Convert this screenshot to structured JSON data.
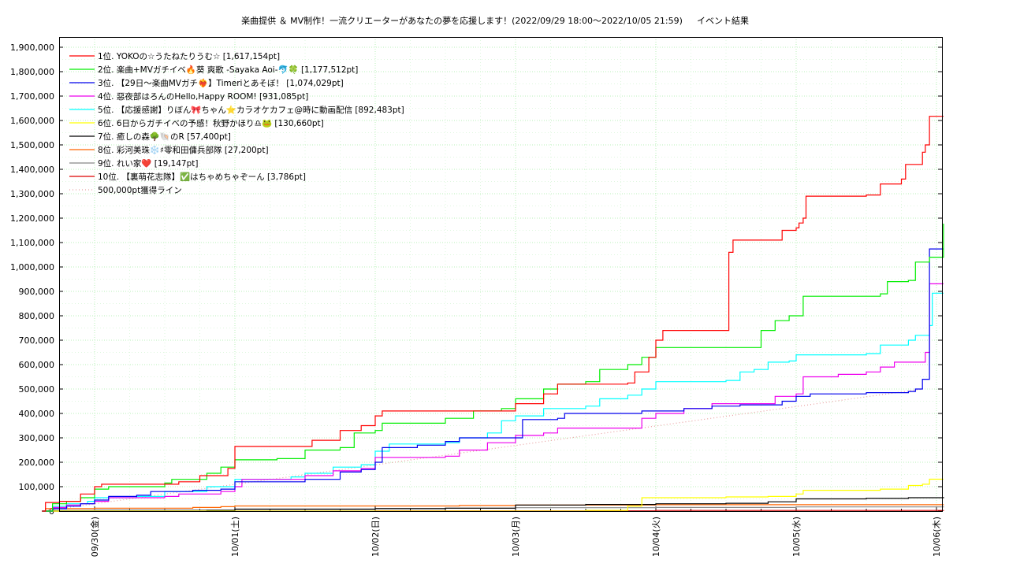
{
  "chart_data": {
    "type": "line",
    "title": "楽曲提供 ＆ MV制作！一流クリエーターがあなたの夢を応援します！(2022/09/29 18:00〜2022/10/05 21:59)",
    "subtitle": "イベント結果",
    "xlabel": "",
    "ylabel": "",
    "xlim": [
      -0.375,
      6.05
    ],
    "ylim": [
      0,
      1950000
    ],
    "grid": true,
    "legend_position": "top-left",
    "y_ticks": [
      0,
      100000,
      200000,
      300000,
      400000,
      500000,
      600000,
      700000,
      800000,
      900000,
      1000000,
      1100000,
      1200000,
      1300000,
      1400000,
      1500000,
      1600000,
      1700000,
      1800000,
      1900000
    ],
    "y_tick_labels": [
      "0",
      "100,000",
      "200,000",
      "300,000",
      "400,000",
      "500,000",
      "600,000",
      "700,000",
      "800,000",
      "900,000",
      "1,000,000",
      "1,100,000",
      "1,200,000",
      "1,300,000",
      "1,400,000",
      "1,500,000",
      "1,600,000",
      "1,700,000",
      "1,800,000",
      "1,900,000"
    ],
    "x_ticks": [
      0,
      1,
      2,
      3,
      4,
      5,
      6
    ],
    "x_tick_labels": [
      "09/30(金)",
      "10/01(土)",
      "10/02(日)",
      "10/03(月)",
      "10/04(火)",
      "10/05(水)",
      "10/06(木)"
    ],
    "series": [
      {
        "name": "1位. YOKOの☆うたねたりうむ☆ [1,617,154pt]",
        "color": "#ff0000",
        "points": [
          [
            -0.375,
            0
          ],
          [
            -0.35,
            35000
          ],
          [
            -0.25,
            40000
          ],
          [
            -0.1,
            70000
          ],
          [
            0.0,
            100000
          ],
          [
            0.05,
            110000
          ],
          [
            0.5,
            110000
          ],
          [
            0.6,
            120000
          ],
          [
            0.75,
            145000
          ],
          [
            0.95,
            175000
          ],
          [
            1.0,
            265000
          ],
          [
            1.5,
            265000
          ],
          [
            1.55,
            290000
          ],
          [
            1.75,
            330000
          ],
          [
            1.9,
            350000
          ],
          [
            2.0,
            390000
          ],
          [
            2.05,
            410000
          ],
          [
            2.8,
            410000
          ],
          [
            3.0,
            440000
          ],
          [
            3.2,
            480000
          ],
          [
            3.3,
            520000
          ],
          [
            3.8,
            525000
          ],
          [
            3.85,
            570000
          ],
          [
            3.95,
            630000
          ],
          [
            4.0,
            700000
          ],
          [
            4.05,
            740000
          ],
          [
            4.5,
            740000
          ],
          [
            4.52,
            1060000
          ],
          [
            4.55,
            1110000
          ],
          [
            4.85,
            1110000
          ],
          [
            4.9,
            1150000
          ],
          [
            5.0,
            1160000
          ],
          [
            5.02,
            1180000
          ],
          [
            5.05,
            1200000
          ],
          [
            5.07,
            1290000
          ],
          [
            5.5,
            1295000
          ],
          [
            5.6,
            1340000
          ],
          [
            5.75,
            1360000
          ],
          [
            5.78,
            1420000
          ],
          [
            5.85,
            1420000
          ],
          [
            5.9,
            1470000
          ],
          [
            5.92,
            1500000
          ],
          [
            5.95,
            1617154
          ],
          [
            6.05,
            1617154
          ]
        ]
      },
      {
        "name": "2位. 楽曲+MVガチイベ🔥葵 爽歌 -Sayaka Aoi-🐬🍀 [1,177,512pt]",
        "color": "#00ee00",
        "points": [
          [
            -0.375,
            0
          ],
          [
            -0.3,
            30000
          ],
          [
            -0.2,
            40000
          ],
          [
            -0.1,
            55000
          ],
          [
            0.0,
            90000
          ],
          [
            0.1,
            100000
          ],
          [
            0.5,
            115000
          ],
          [
            0.55,
            130000
          ],
          [
            0.8,
            155000
          ],
          [
            0.9,
            180000
          ],
          [
            1.0,
            210000
          ],
          [
            1.3,
            215000
          ],
          [
            1.5,
            250000
          ],
          [
            1.75,
            260000
          ],
          [
            1.85,
            320000
          ],
          [
            2.0,
            330000
          ],
          [
            2.05,
            360000
          ],
          [
            2.5,
            380000
          ],
          [
            2.7,
            410000
          ],
          [
            2.9,
            420000
          ],
          [
            3.0,
            460000
          ],
          [
            3.2,
            500000
          ],
          [
            3.3,
            520000
          ],
          [
            3.5,
            530000
          ],
          [
            3.6,
            580000
          ],
          [
            3.8,
            600000
          ],
          [
            3.9,
            630000
          ],
          [
            4.0,
            670000
          ],
          [
            4.7,
            670000
          ],
          [
            4.75,
            740000
          ],
          [
            4.85,
            780000
          ],
          [
            4.95,
            800000
          ],
          [
            5.05,
            880000
          ],
          [
            5.6,
            890000
          ],
          [
            5.65,
            940000
          ],
          [
            5.8,
            945000
          ],
          [
            5.85,
            1020000
          ],
          [
            5.95,
            1040000
          ],
          [
            6.05,
            1177512
          ]
        ]
      },
      {
        "name": "3位. 【29日〜楽曲MVガチ❤️‍🔥】Timeriとあそぼ！ [1,074,029pt]",
        "color": "#0000ee",
        "points": [
          [
            -0.375,
            0
          ],
          [
            -0.3,
            10000
          ],
          [
            -0.2,
            20000
          ],
          [
            -0.1,
            30000
          ],
          [
            0.0,
            45000
          ],
          [
            0.1,
            60000
          ],
          [
            0.3,
            65000
          ],
          [
            0.4,
            80000
          ],
          [
            0.7,
            85000
          ],
          [
            0.9,
            90000
          ],
          [
            1.0,
            120000
          ],
          [
            1.4,
            120000
          ],
          [
            1.5,
            130000
          ],
          [
            1.75,
            160000
          ],
          [
            1.9,
            170000
          ],
          [
            2.0,
            200000
          ],
          [
            2.05,
            260000
          ],
          [
            2.3,
            270000
          ],
          [
            2.5,
            285000
          ],
          [
            2.6,
            300000
          ],
          [
            3.0,
            300000
          ],
          [
            3.05,
            375000
          ],
          [
            3.3,
            380000
          ],
          [
            3.35,
            400000
          ],
          [
            3.8,
            400000
          ],
          [
            3.9,
            410000
          ],
          [
            4.2,
            420000
          ],
          [
            4.4,
            430000
          ],
          [
            4.6,
            435000
          ],
          [
            4.9,
            450000
          ],
          [
            5.0,
            470000
          ],
          [
            5.1,
            480000
          ],
          [
            5.5,
            485000
          ],
          [
            5.8,
            490000
          ],
          [
            5.85,
            500000
          ],
          [
            5.9,
            540000
          ],
          [
            5.95,
            1074029
          ],
          [
            6.05,
            1074029
          ]
        ]
      },
      {
        "name": "4位. 惡夜部はろんのHello,Happy ROOM! [931,085pt]",
        "color": "#ee00ee",
        "points": [
          [
            -0.375,
            0
          ],
          [
            -0.3,
            15000
          ],
          [
            -0.2,
            25000
          ],
          [
            -0.1,
            30000
          ],
          [
            0.0,
            40000
          ],
          [
            0.1,
            55000
          ],
          [
            0.5,
            60000
          ],
          [
            0.6,
            70000
          ],
          [
            0.9,
            80000
          ],
          [
            1.0,
            100000
          ],
          [
            1.05,
            130000
          ],
          [
            1.5,
            145000
          ],
          [
            1.7,
            165000
          ],
          [
            1.9,
            175000
          ],
          [
            2.0,
            220000
          ],
          [
            2.5,
            225000
          ],
          [
            2.6,
            250000
          ],
          [
            2.8,
            280000
          ],
          [
            3.0,
            310000
          ],
          [
            3.2,
            320000
          ],
          [
            3.3,
            340000
          ],
          [
            3.8,
            340000
          ],
          [
            3.9,
            380000
          ],
          [
            4.0,
            400000
          ],
          [
            4.2,
            420000
          ],
          [
            4.4,
            440000
          ],
          [
            4.7,
            440000
          ],
          [
            4.85,
            470000
          ],
          [
            5.0,
            480000
          ],
          [
            5.05,
            550000
          ],
          [
            5.3,
            560000
          ],
          [
            5.5,
            570000
          ],
          [
            5.6,
            590000
          ],
          [
            5.7,
            610000
          ],
          [
            5.9,
            610000
          ],
          [
            5.92,
            650000
          ],
          [
            5.95,
            931085
          ],
          [
            6.05,
            931085
          ]
        ]
      },
      {
        "name": "5位. 【応援感謝】りぼん🎀ちゃん⭐カラオケカフェ@時に動画配信 [892,483pt]",
        "color": "#00ffff",
        "points": [
          [
            -0.375,
            0
          ],
          [
            -0.3,
            20000
          ],
          [
            -0.2,
            30000
          ],
          [
            -0.05,
            40000
          ],
          [
            0.0,
            55000
          ],
          [
            0.3,
            60000
          ],
          [
            0.5,
            80000
          ],
          [
            0.8,
            100000
          ],
          [
            1.0,
            130000
          ],
          [
            1.4,
            140000
          ],
          [
            1.5,
            155000
          ],
          [
            1.7,
            180000
          ],
          [
            1.9,
            190000
          ],
          [
            2.0,
            245000
          ],
          [
            2.1,
            275000
          ],
          [
            2.5,
            280000
          ],
          [
            2.6,
            300000
          ],
          [
            2.8,
            320000
          ],
          [
            2.9,
            370000
          ],
          [
            3.0,
            390000
          ],
          [
            3.2,
            420000
          ],
          [
            3.5,
            430000
          ],
          [
            3.6,
            460000
          ],
          [
            3.8,
            475000
          ],
          [
            3.9,
            500000
          ],
          [
            4.0,
            530000
          ],
          [
            4.5,
            535000
          ],
          [
            4.6,
            570000
          ],
          [
            4.7,
            580000
          ],
          [
            4.8,
            610000
          ],
          [
            4.95,
            615000
          ],
          [
            5.0,
            640000
          ],
          [
            5.5,
            645000
          ],
          [
            5.6,
            680000
          ],
          [
            5.8,
            700000
          ],
          [
            5.85,
            720000
          ],
          [
            5.95,
            760000
          ],
          [
            5.97,
            892483
          ],
          [
            6.05,
            892483
          ]
        ]
      },
      {
        "name": "6位. 6日からガチイベの予感！秋野かほり♎🐸 [130,660pt]",
        "color": "#ffff00",
        "points": [
          [
            -0.375,
            0
          ],
          [
            3.5,
            3000
          ],
          [
            3.8,
            20000
          ],
          [
            3.9,
            55000
          ],
          [
            4.5,
            58000
          ],
          [
            4.8,
            60000
          ],
          [
            5.0,
            70000
          ],
          [
            5.05,
            85000
          ],
          [
            5.6,
            90000
          ],
          [
            5.8,
            105000
          ],
          [
            5.9,
            110000
          ],
          [
            5.95,
            130660
          ],
          [
            6.05,
            130660
          ]
        ]
      },
      {
        "name": "7位. 癒しの森🌳🐚のR [57,400pt]",
        "color": "#000000",
        "points": [
          [
            -0.375,
            0
          ],
          [
            0.8,
            2000
          ],
          [
            1.0,
            8000
          ],
          [
            2.0,
            10000
          ],
          [
            2.5,
            12000
          ],
          [
            3.0,
            25000
          ],
          [
            3.5,
            27000
          ],
          [
            4.0,
            30000
          ],
          [
            4.5,
            32000
          ],
          [
            4.8,
            38000
          ],
          [
            5.0,
            50000
          ],
          [
            5.5,
            52000
          ],
          [
            5.8,
            55000
          ],
          [
            6.05,
            57400
          ]
        ]
      },
      {
        "name": "8位. 彩河美珠❄️♯零和田傭兵部隊 [27,200pt]",
        "color": "#ff6600",
        "points": [
          [
            -0.375,
            0
          ],
          [
            -0.35,
            10000
          ],
          [
            0.0,
            12000
          ],
          [
            0.7,
            15000
          ],
          [
            0.9,
            18000
          ],
          [
            1.0,
            21000
          ],
          [
            2.5,
            21000
          ],
          [
            2.6,
            23000
          ],
          [
            3.0,
            25000
          ],
          [
            4.0,
            26000
          ],
          [
            6.05,
            27200
          ]
        ]
      },
      {
        "name": "9位. れい家❤️ [19,147pt]",
        "color": "#888888",
        "points": [
          [
            -0.375,
            0
          ],
          [
            -0.3,
            3000
          ],
          [
            0.0,
            5000
          ],
          [
            1.0,
            7000
          ],
          [
            2.0,
            10000
          ],
          [
            2.5,
            12000
          ],
          [
            3.0,
            14000
          ],
          [
            4.0,
            15000
          ],
          [
            5.0,
            17000
          ],
          [
            6.05,
            19147
          ]
        ]
      },
      {
        "name": "10位. 【裏萌花志隊】✅はちゃめちゃぞーん [3,786pt]",
        "color": "#dd0000",
        "points": [
          [
            -0.375,
            0
          ],
          [
            2.0,
            1000
          ],
          [
            4.0,
            2500
          ],
          [
            6.05,
            3786
          ]
        ]
      },
      {
        "name": "500,000pt獲得ライン",
        "color": "#e8a0a0",
        "dashed": true,
        "points": [
          [
            -0.375,
            0
          ],
          [
            5.9,
            500000
          ]
        ]
      }
    ]
  }
}
